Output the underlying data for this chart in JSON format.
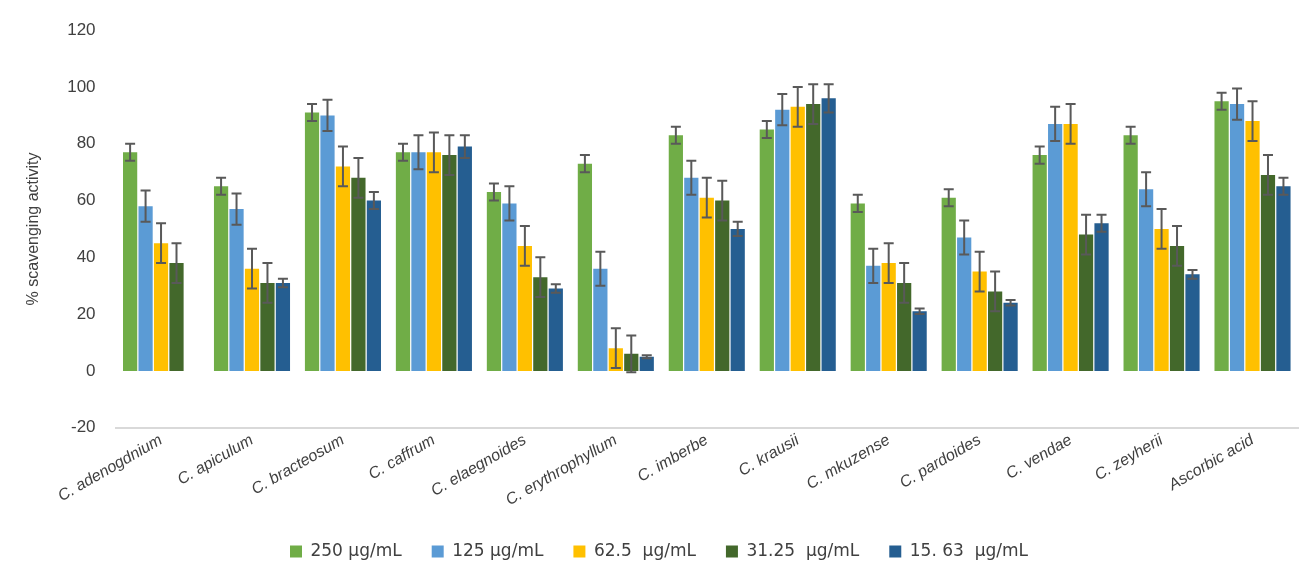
{
  "chart_data": {
    "type": "bar",
    "ylabel": "% scavenging activity",
    "categories": [
      "C. adenogdnium",
      "C. apiculum",
      "C. bracteosum",
      "C. caffrum",
      "C. elaegnoides",
      "C. erythrophyllum",
      "C. imberbe",
      "C. krausii",
      "C. mkuzense",
      "C. pardoides",
      "C. vendae",
      "C. zeyherii",
      "Ascorbic acid"
    ],
    "series": [
      {
        "name": "250 µg/mL",
        "color": "#70ad47",
        "values": [
          77,
          65,
          91,
          77,
          63,
          73,
          83,
          85,
          59,
          61,
          76,
          83,
          95
        ],
        "errors": [
          3,
          3,
          3,
          3,
          3,
          3,
          3,
          3,
          3,
          3,
          3,
          3,
          3
        ]
      },
      {
        "name": "125 µg/mL",
        "color": "#5b9bd5",
        "values": [
          58,
          57,
          90,
          77,
          59,
          36,
          68,
          92,
          37,
          47,
          87,
          64,
          94
        ],
        "errors": [
          5.5,
          5.5,
          5.5,
          6,
          6,
          6,
          6,
          5.5,
          6,
          6,
          6,
          6,
          5.5
        ]
      },
      {
        "name": "62.5  µg/mL",
        "color": "#ffc000",
        "values": [
          45,
          36,
          72,
          77,
          44,
          8,
          61,
          93,
          38,
          35,
          87,
          50,
          88
        ],
        "errors": [
          7,
          7,
          7,
          7,
          7,
          7,
          7,
          7,
          7,
          7,
          7,
          7,
          7
        ]
      },
      {
        "name": "31.25  µg/mL",
        "color": "#43682b",
        "values": [
          38,
          31,
          68,
          76,
          33,
          6,
          60,
          94,
          31,
          28,
          48,
          44,
          69
        ],
        "errors": [
          7,
          7,
          7,
          7,
          7,
          6.5,
          7,
          7,
          7,
          7,
          7,
          7,
          7
        ]
      },
      {
        "name": "15. 63  µg/mL",
        "color": "#255e91",
        "values": [
          null,
          31,
          60,
          79,
          29,
          5,
          50,
          96,
          21,
          24,
          52,
          34,
          65
        ],
        "errors": [
          null,
          1.5,
          3,
          4,
          1.5,
          0.5,
          2.5,
          5,
          1,
          1,
          3,
          1.5,
          3
        ]
      }
    ],
    "ylim": [
      -20,
      120
    ],
    "yticks": [
      -20,
      0,
      20,
      40,
      60,
      80,
      100,
      120
    ],
    "grid": false,
    "legend": "bottom"
  }
}
